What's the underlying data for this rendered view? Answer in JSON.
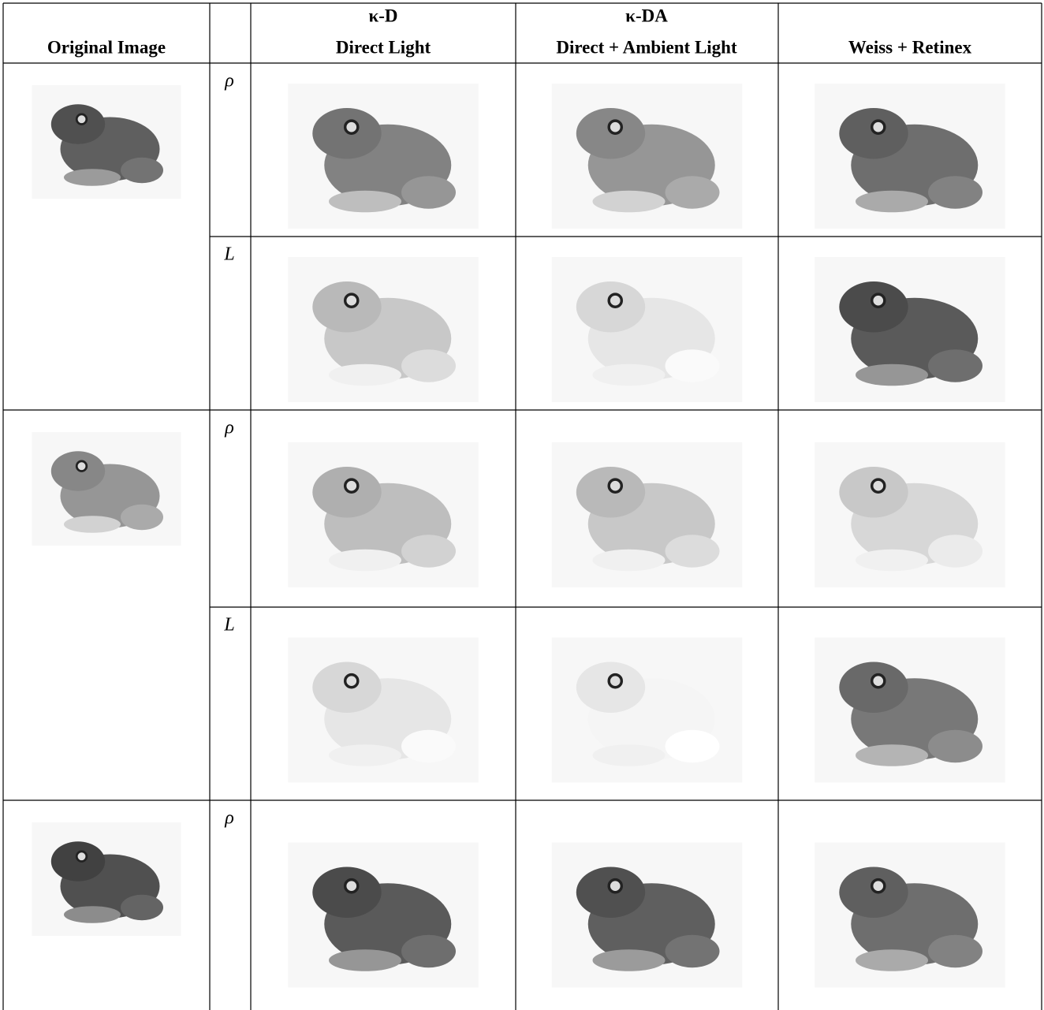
{
  "table": {
    "header": {
      "original": "Original Image",
      "kd": {
        "symbol": "κ-D",
        "label": "Direct Light"
      },
      "kda": {
        "symbol": "κ-DA",
        "label": "Direct + Ambient Light"
      },
      "weiss": "Weiss + Retinex"
    },
    "rows": [
      {
        "label": "ρ"
      },
      {
        "label": "L"
      },
      {
        "label": "ρ"
      },
      {
        "label": "L"
      },
      {
        "label": "ρ"
      }
    ]
  }
}
